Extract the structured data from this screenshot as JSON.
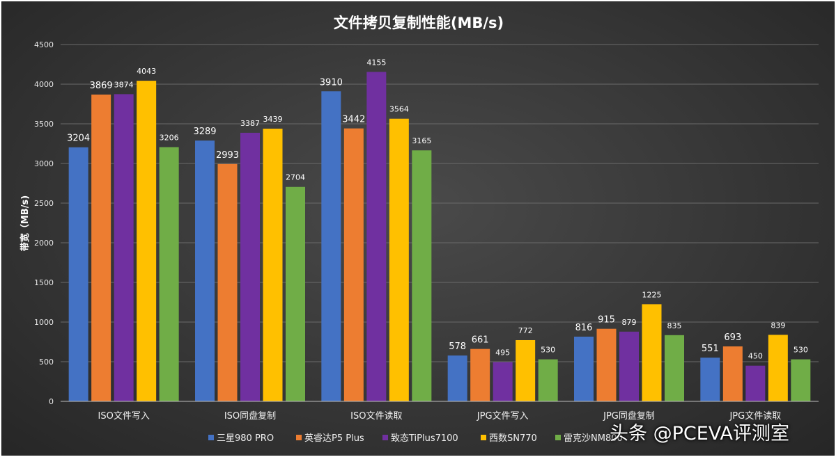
{
  "chart_data": {
    "type": "bar",
    "title": "文件拷贝复制性能(MB/s)",
    "ylabel": "带宽（MB/s)",
    "ylim": [
      0,
      4500
    ],
    "yticks": [
      0,
      500,
      1000,
      1500,
      2000,
      2500,
      3000,
      3500,
      4000,
      4500
    ],
    "grid": true,
    "legend_position": "bottom",
    "categories": [
      "ISO文件写入",
      "ISO同盘复制",
      "ISO文件读取",
      "JPG文件写入",
      "JPG同盘复制",
      "JPG文件读取"
    ],
    "series": [
      {
        "name": "三星980 PRO",
        "color": "#4472c4",
        "values": [
          3204,
          3289,
          3910,
          578,
          816,
          551
        ]
      },
      {
        "name": "英睿达P5 Plus",
        "color": "#ed7d31",
        "values": [
          3869,
          2993,
          3442,
          661,
          915,
          693
        ]
      },
      {
        "name": "致态TiPlus7100",
        "color": "#7030a0",
        "values": [
          3874,
          3387,
          4155,
          495,
          879,
          450
        ]
      },
      {
        "name": "西数SN770",
        "color": "#ffc000",
        "values": [
          4043,
          3439,
          3564,
          772,
          1225,
          839
        ]
      },
      {
        "name": "雷克沙NM800",
        "color": "#70ad47",
        "values": [
          3206,
          2704,
          3165,
          530,
          835,
          530
        ]
      }
    ],
    "label_sizes": [
      [
        "big",
        "big",
        "small",
        "small",
        "small"
      ],
      [
        "big",
        "big",
        "small",
        "small",
        "small"
      ],
      [
        "big",
        "big",
        "small",
        "small",
        "small"
      ],
      [
        "big",
        "big",
        "small",
        "small",
        "small"
      ],
      [
        "big",
        "big",
        "small",
        "small",
        "small"
      ],
      [
        "big",
        "big",
        "small",
        "small",
        "small"
      ]
    ]
  },
  "watermark": "头条 @PCEVA评测室"
}
